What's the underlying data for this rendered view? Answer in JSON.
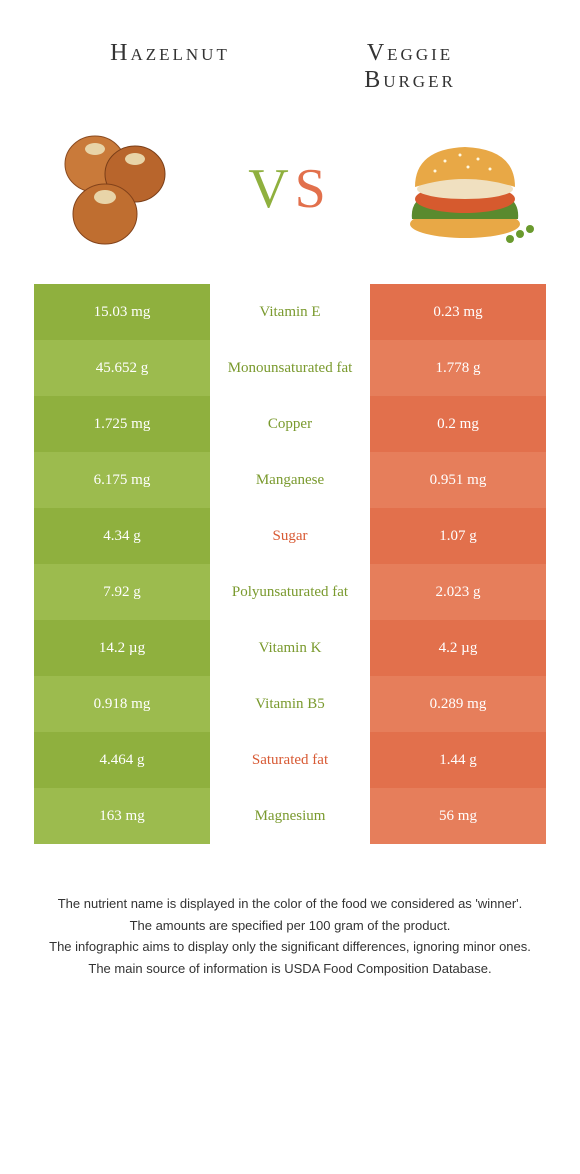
{
  "header": {
    "left_title": "Hazelnut",
    "right_title_line1": "Veggie",
    "right_title_line2": "Burger"
  },
  "vs": {
    "v": "V",
    "s": "S"
  },
  "colors": {
    "green": "#8fb03e",
    "green_alt": "#9cbb4e",
    "orange": "#e2704c",
    "orange_alt": "#e67e5b",
    "nutrient_green": "#7a9a2e",
    "nutrient_orange": "#d85a34"
  },
  "rows": [
    {
      "left": "15.03 mg",
      "nutrient": "Vitamin E",
      "winner": "green",
      "right": "0.23 mg"
    },
    {
      "left": "45.652 g",
      "nutrient": "Monounsaturated fat",
      "winner": "green",
      "right": "1.778 g"
    },
    {
      "left": "1.725 mg",
      "nutrient": "Copper",
      "winner": "green",
      "right": "0.2 mg"
    },
    {
      "left": "6.175 mg",
      "nutrient": "Manganese",
      "winner": "green",
      "right": "0.951 mg"
    },
    {
      "left": "4.34 g",
      "nutrient": "Sugar",
      "winner": "orange",
      "right": "1.07 g"
    },
    {
      "left": "7.92 g",
      "nutrient": "Polyunsaturated fat",
      "winner": "green",
      "right": "2.023 g"
    },
    {
      "left": "14.2 µg",
      "nutrient": "Vitamin K",
      "winner": "green",
      "right": "4.2 µg"
    },
    {
      "left": "0.918 mg",
      "nutrient": "Vitamin B5",
      "winner": "green",
      "right": "0.289 mg"
    },
    {
      "left": "4.464 g",
      "nutrient": "Saturated fat",
      "winner": "orange",
      "right": "1.44 g"
    },
    {
      "left": "163 mg",
      "nutrient": "Magnesium",
      "winner": "green",
      "right": "56 mg"
    }
  ],
  "footer": {
    "line1": "The nutrient name is displayed in the color of the food we considered as 'winner'.",
    "line2": "The amounts are specified per 100 gram of the product.",
    "line3": "The infographic aims to display only the significant differences, ignoring minor ones.",
    "line4": "The main source of information is USDA Food Composition Database."
  }
}
